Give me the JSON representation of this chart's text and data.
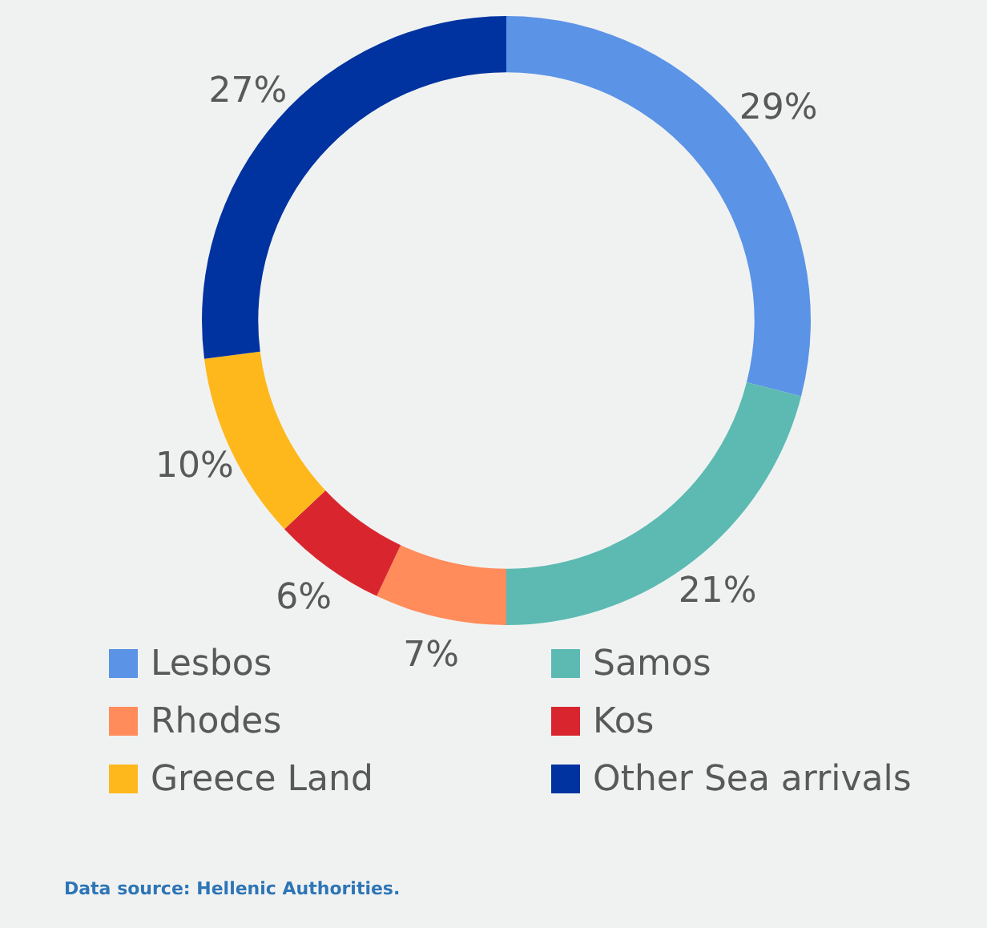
{
  "chart_data": {
    "type": "donut",
    "categories": [
      "Lesbos",
      "Samos",
      "Rhodes",
      "Kos",
      "Greece Land",
      "Other Sea arrivals"
    ],
    "values": [
      29,
      21,
      7,
      6,
      10,
      27
    ],
    "colors": [
      "#5b93e6",
      "#5cbab2",
      "#ff8c5a",
      "#d9262e",
      "#ffb81c",
      "#0033a0"
    ],
    "value_labels": [
      "29%",
      "21%",
      "7%",
      "6%",
      "10%",
      "27%"
    ],
    "legend": "bottom",
    "annotations": [
      "Data source: Hellenic Authorities."
    ]
  }
}
